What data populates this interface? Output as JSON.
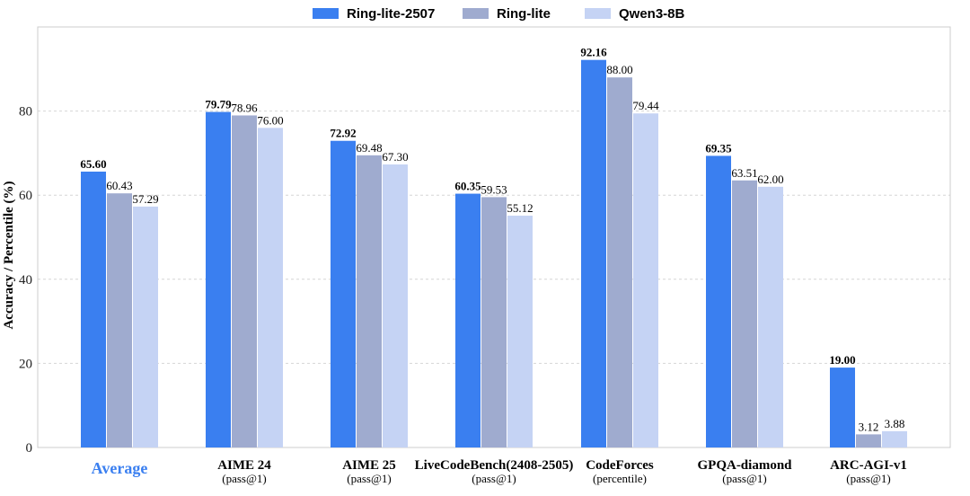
{
  "chart_data": {
    "type": "bar",
    "title": "",
    "xlabel": "",
    "ylabel": "Accuracy / Percentile (%)",
    "ylim": [
      0,
      100
    ],
    "yticks": [
      0,
      20,
      40,
      60,
      80
    ],
    "grid": true,
    "legend_position": "top-center",
    "categories": [
      {
        "label": "Average",
        "sublabel": "",
        "highlight": true
      },
      {
        "label": "AIME 24",
        "sublabel": "(pass@1)"
      },
      {
        "label": "AIME 25",
        "sublabel": "(pass@1)"
      },
      {
        "label": "LiveCodeBench(2408-2505)",
        "sublabel": "(pass@1)"
      },
      {
        "label": "CodeForces",
        "sublabel": "(percentile)"
      },
      {
        "label": "GPQA-diamond",
        "sublabel": "(pass@1)"
      },
      {
        "label": "ARC-AGI-v1",
        "sublabel": "(pass@1)"
      }
    ],
    "series": [
      {
        "name": "Ring-lite-2507",
        "color": "#3a7ff0",
        "bold": true,
        "values": [
          65.6,
          79.79,
          72.92,
          60.35,
          92.16,
          69.35,
          19.0
        ],
        "labels": [
          "65.60",
          "79.79",
          "72.92",
          "60.35",
          "92.16",
          "69.35",
          "19.00"
        ]
      },
      {
        "name": "Ring-lite",
        "color": "#9fabcf",
        "bold": false,
        "values": [
          60.43,
          78.96,
          69.48,
          59.53,
          88.0,
          63.51,
          3.12
        ],
        "labels": [
          "60.43",
          "78.96",
          "69.48",
          "59.53",
          "88.00",
          "63.51",
          "3.12"
        ]
      },
      {
        "name": "Qwen3-8B",
        "color": "#c5d3f4",
        "bold": false,
        "values": [
          57.29,
          76.0,
          67.3,
          55.12,
          79.44,
          62.0,
          3.88
        ],
        "labels": [
          "57.29",
          "76.00",
          "67.30",
          "55.12",
          "79.44",
          "62.00",
          "3.88"
        ]
      }
    ],
    "colors": {
      "highlight_label": "#3a7ff0",
      "grid": "#d6d6d6",
      "axis": "#cccccc",
      "text": "#000000"
    }
  }
}
